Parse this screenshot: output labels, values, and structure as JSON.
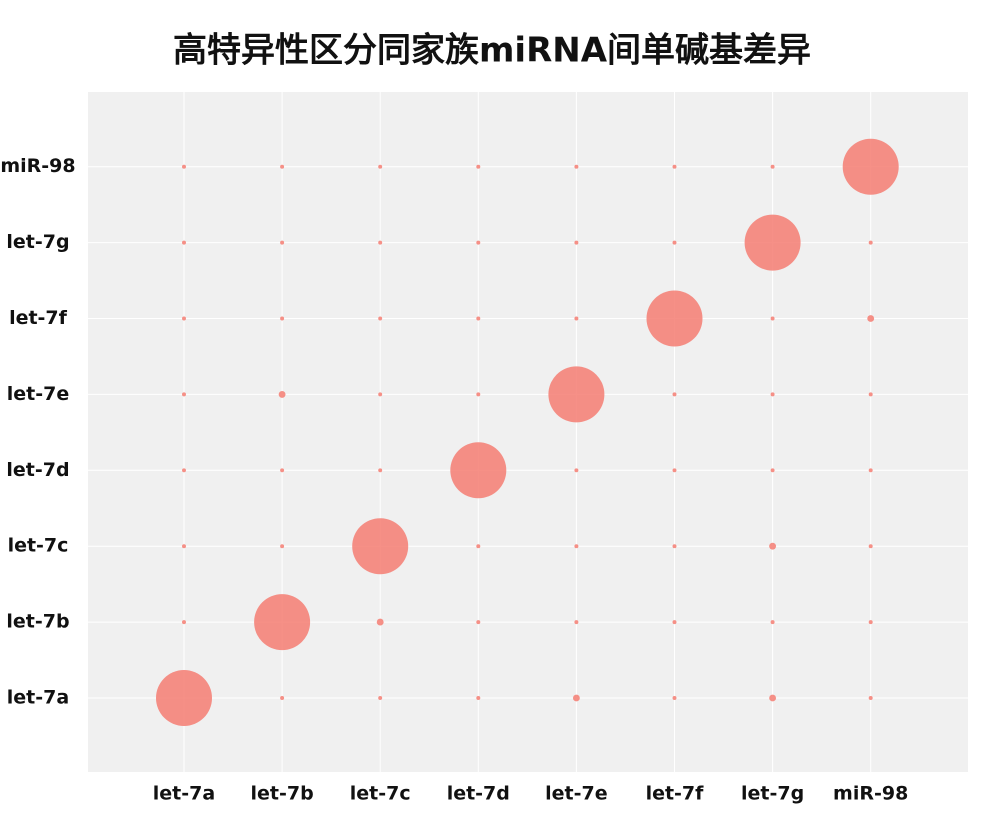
{
  "chart_data": {
    "type": "bubble",
    "title": "高特异性区分同家族miRNA间单碱基差异",
    "x_categories": [
      "let-7a",
      "let-7b",
      "let-7c",
      "let-7d",
      "let-7e",
      "let-7f",
      "let-7g",
      "miR-98"
    ],
    "y_categories": [
      "let-7a",
      "let-7b",
      "let-7c",
      "let-7d",
      "let-7e",
      "let-7f",
      "let-7g",
      "miR-98"
    ],
    "values": [
      [
        100,
        0.5,
        0.5,
        0.5,
        1.5,
        0.5,
        1.5,
        0.5
      ],
      [
        0.5,
        100,
        1.5,
        0.5,
        0.5,
        0.5,
        0.5,
        0.5
      ],
      [
        0.5,
        0.5,
        100,
        0.5,
        0.5,
        0.5,
        1.5,
        0.5
      ],
      [
        0.5,
        0.5,
        0.5,
        100,
        0.5,
        0.5,
        0.5,
        0.5
      ],
      [
        0.5,
        1.5,
        0.5,
        0.5,
        100,
        0.5,
        0.5,
        0.5
      ],
      [
        0.5,
        0.5,
        0.5,
        0.5,
        0.5,
        100,
        0.5,
        1.5
      ],
      [
        0.5,
        0.5,
        0.5,
        0.5,
        0.5,
        0.5,
        100,
        0.5
      ],
      [
        0.5,
        0.5,
        0.5,
        0.5,
        0.5,
        0.5,
        0.5,
        100
      ]
    ],
    "color": "#f47c72",
    "grid": true
  }
}
